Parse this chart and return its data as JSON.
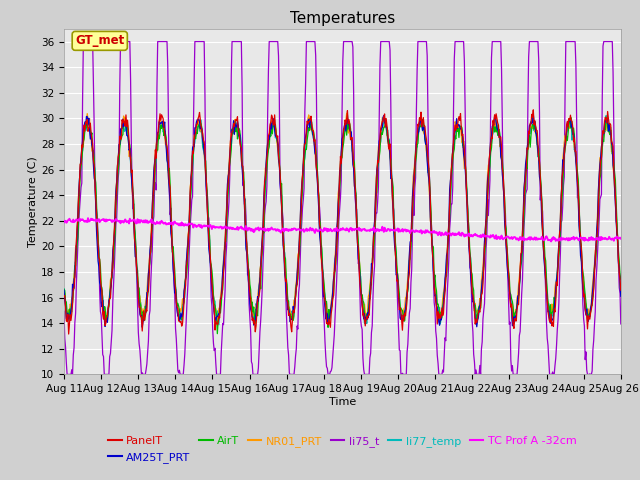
{
  "title": "Temperatures",
  "xlabel": "Time",
  "ylabel": "Temperature (C)",
  "ylim": [
    10,
    37
  ],
  "yticks": [
    10,
    12,
    14,
    16,
    18,
    20,
    22,
    24,
    26,
    28,
    30,
    32,
    34,
    36
  ],
  "x_tick_days": [
    11,
    12,
    13,
    14,
    15,
    16,
    17,
    18,
    19,
    20,
    21,
    22,
    23,
    24,
    25,
    26
  ],
  "series_colors": {
    "PanelT": "#dd0000",
    "AM25T_PRT": "#0000cc",
    "AirT": "#00bb00",
    "NR01_PRT": "#ff9900",
    "li75_t": "#9900cc",
    "li77_temp": "#00bbbb",
    "TC_Prof_A": "#ff00ff"
  },
  "annotation_text": "GT_met",
  "annotation_color": "#cc0000",
  "annotation_bg": "#ffff99",
  "annotation_border": "#999900",
  "fig_bg_color": "#d0d0d0",
  "plot_bg_color": "#e8e8e8",
  "title_fontsize": 11,
  "axis_label_fontsize": 8,
  "tick_fontsize": 7.5,
  "legend_fontsize": 8
}
